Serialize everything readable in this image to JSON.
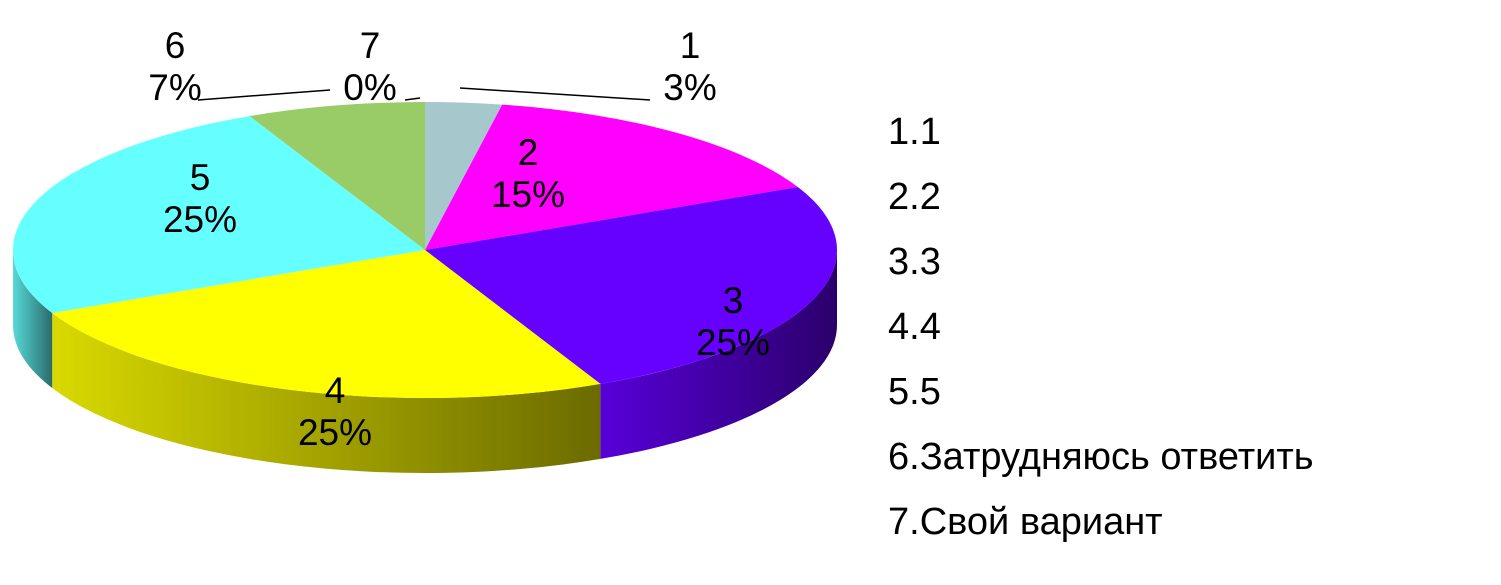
{
  "chart_data": {
    "type": "pie",
    "style": "3d",
    "slices": [
      {
        "category": "1",
        "percent_label": "3%",
        "value": 3,
        "color": "#a6c8cc"
      },
      {
        "category": "2",
        "percent_label": "15%",
        "value": 15,
        "color": "#ff00ff"
      },
      {
        "category": "3",
        "percent_label": "25%",
        "value": 25,
        "color": "#6600ff"
      },
      {
        "category": "4",
        "percent_label": "25%",
        "value": 25,
        "color": "#ffff00"
      },
      {
        "category": "5",
        "percent_label": "25%",
        "value": 25,
        "color": "#66ffff"
      },
      {
        "category": "6",
        "percent_label": "7%",
        "value": 7,
        "color": "#99cc66"
      },
      {
        "category": "7",
        "percent_label": "0%",
        "value": 0,
        "color": "#cccccc"
      }
    ],
    "legend": {
      "placement": "right",
      "entries": [
        "1.1",
        "2.2",
        "3.3",
        "4.4",
        "5.5",
        "6.Затрудняюсь ответить",
        "7.Свой вариант"
      ]
    }
  }
}
